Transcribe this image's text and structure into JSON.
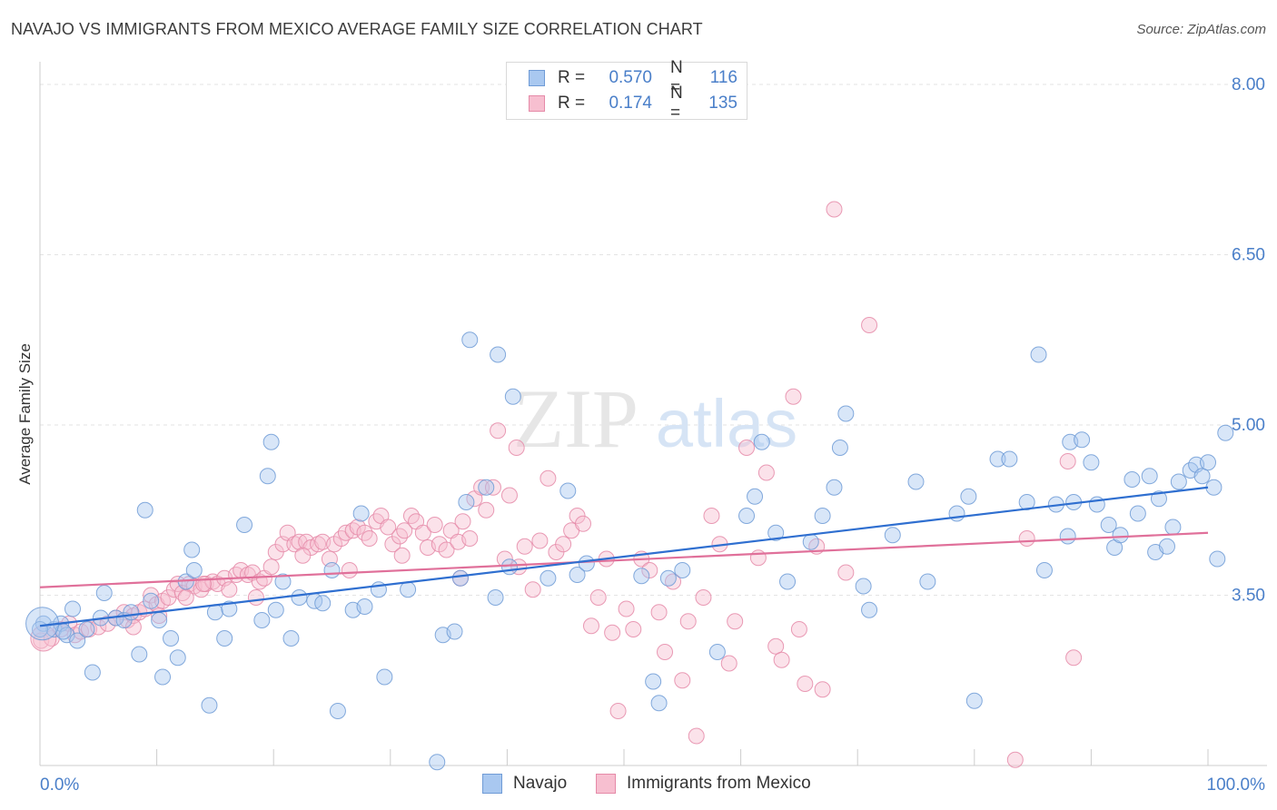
{
  "header": {
    "title": "NAVAJO VS IMMIGRANTS FROM MEXICO AVERAGE FAMILY SIZE CORRELATION CHART",
    "source": "Source: ZipAtlas.com"
  },
  "watermark": {
    "zip": "ZIP",
    "atlas": "atlas"
  },
  "legend": {
    "rows": [
      {
        "r_label": "R =",
        "r_value": "0.570",
        "n_label": "N =",
        "n_value": "116",
        "color": "#a9c8f0",
        "border": "#6f9bd6"
      },
      {
        "r_label": "R =",
        "r_value": "0.174",
        "n_label": "N =",
        "n_value": "135",
        "color": "#f7bfd0",
        "border": "#e58aa8"
      }
    ]
  },
  "bottom_legend": [
    {
      "label": "Navajo",
      "color": "#a9c8f0",
      "border": "#6f9bd6"
    },
    {
      "label": "Immigrants from Mexico",
      "color": "#f7bfd0",
      "border": "#e58aa8"
    }
  ],
  "chart_data": {
    "type": "scatter",
    "title": "NAVAJO VS IMMIGRANTS FROM MEXICO AVERAGE FAMILY SIZE CORRELATION CHART",
    "xlabel": "",
    "ylabel": "Average Family Size",
    "xlim": [
      0,
      100
    ],
    "ylim": [
      2.0,
      8.2
    ],
    "x_tick_labels": [
      "0.0%",
      "100.0%"
    ],
    "y_ticks": [
      3.5,
      5.0,
      6.5,
      8.0
    ],
    "y_tick_labels": [
      "3.50",
      "5.00",
      "6.50",
      "8.00"
    ],
    "grid": "horizontal-dashed",
    "legend_placement": "top-center",
    "colors": {
      "navajo": "#4a7fc9",
      "navajo_line": "#2f6fd0",
      "mexico": "#e0789c",
      "mexico_line": "#e0709a",
      "tick_label": "#4a7fc9"
    },
    "series": [
      {
        "name": "Navajo",
        "trend": {
          "x": [
            0,
            100
          ],
          "y": [
            3.23,
            4.45
          ]
        },
        "points": [
          [
            0.3,
            3.25
          ],
          [
            1.2,
            3.2
          ],
          [
            1.8,
            3.25
          ],
          [
            2.3,
            3.15
          ],
          [
            2.8,
            3.38
          ],
          [
            3.2,
            3.1
          ],
          [
            4.0,
            3.2
          ],
          [
            4.5,
            2.82
          ],
          [
            5.2,
            3.3
          ],
          [
            5.5,
            3.52
          ],
          [
            6.5,
            3.3
          ],
          [
            7.2,
            3.28
          ],
          [
            7.8,
            3.35
          ],
          [
            8.5,
            2.98
          ],
          [
            9.0,
            4.25
          ],
          [
            9.5,
            3.45
          ],
          [
            10.2,
            3.28
          ],
          [
            10.5,
            2.78
          ],
          [
            11.2,
            3.12
          ],
          [
            11.8,
            2.95
          ],
          [
            12.5,
            3.62
          ],
          [
            13.0,
            3.9
          ],
          [
            13.2,
            3.72
          ],
          [
            14.5,
            2.53
          ],
          [
            15.0,
            3.35
          ],
          [
            15.8,
            3.12
          ],
          [
            16.2,
            3.38
          ],
          [
            17.5,
            4.12
          ],
          [
            19.0,
            3.28
          ],
          [
            19.5,
            4.55
          ],
          [
            19.8,
            4.85
          ],
          [
            20.2,
            3.37
          ],
          [
            20.8,
            3.62
          ],
          [
            21.5,
            3.12
          ],
          [
            22.2,
            3.48
          ],
          [
            23.5,
            3.45
          ],
          [
            24.2,
            3.43
          ],
          [
            25.0,
            3.72
          ],
          [
            25.5,
            2.48
          ],
          [
            26.8,
            3.37
          ],
          [
            27.5,
            4.22
          ],
          [
            27.8,
            3.4
          ],
          [
            29.0,
            3.55
          ],
          [
            29.5,
            2.78
          ],
          [
            31.5,
            3.55
          ],
          [
            34.0,
            2.03
          ],
          [
            34.5,
            3.15
          ],
          [
            35.5,
            3.18
          ],
          [
            36.0,
            3.65
          ],
          [
            36.5,
            4.32
          ],
          [
            36.8,
            5.75
          ],
          [
            38.2,
            4.45
          ],
          [
            39.0,
            3.48
          ],
          [
            39.2,
            5.62
          ],
          [
            40.2,
            3.75
          ],
          [
            40.5,
            5.25
          ],
          [
            43.5,
            3.65
          ],
          [
            45.2,
            4.42
          ],
          [
            46.0,
            3.68
          ],
          [
            46.8,
            3.78
          ],
          [
            51.5,
            3.67
          ],
          [
            52.5,
            2.74
          ],
          [
            53.0,
            2.55
          ],
          [
            53.8,
            3.65
          ],
          [
            55.0,
            3.72
          ],
          [
            58.0,
            3.0
          ],
          [
            60.5,
            4.2
          ],
          [
            61.2,
            4.37
          ],
          [
            61.8,
            4.85
          ],
          [
            63.0,
            4.05
          ],
          [
            64.0,
            3.62
          ],
          [
            66.0,
            3.97
          ],
          [
            67.0,
            4.2
          ],
          [
            68.0,
            4.45
          ],
          [
            68.5,
            4.8
          ],
          [
            69.0,
            5.1
          ],
          [
            70.5,
            3.58
          ],
          [
            71.0,
            3.37
          ],
          [
            73.0,
            4.03
          ],
          [
            75.0,
            4.5
          ],
          [
            76.0,
            3.62
          ],
          [
            78.5,
            4.22
          ],
          [
            79.5,
            4.37
          ],
          [
            80.0,
            2.57
          ],
          [
            82.0,
            4.7
          ],
          [
            83.0,
            4.7
          ],
          [
            84.5,
            4.32
          ],
          [
            85.5,
            5.62
          ],
          [
            86.0,
            3.72
          ],
          [
            87.0,
            4.3
          ],
          [
            88.0,
            4.02
          ],
          [
            88.2,
            4.85
          ],
          [
            88.5,
            4.32
          ],
          [
            89.2,
            4.87
          ],
          [
            90.0,
            4.67
          ],
          [
            90.5,
            4.3
          ],
          [
            91.5,
            4.12
          ],
          [
            92.0,
            3.92
          ],
          [
            92.5,
            4.03
          ],
          [
            93.5,
            4.52
          ],
          [
            94.0,
            4.22
          ],
          [
            95.0,
            4.55
          ],
          [
            95.5,
            3.88
          ],
          [
            95.8,
            4.35
          ],
          [
            96.5,
            3.93
          ],
          [
            97.0,
            4.1
          ],
          [
            97.5,
            4.5
          ],
          [
            98.5,
            4.6
          ],
          [
            99.0,
            4.65
          ],
          [
            99.5,
            4.55
          ],
          [
            100.0,
            4.67
          ],
          [
            100.5,
            4.45
          ],
          [
            100.8,
            3.82
          ],
          [
            101.5,
            4.93
          ],
          [
            0.0,
            3.2
          ],
          [
            2.0,
            3.18
          ]
        ]
      },
      {
        "name": "Immigrants from Mexico",
        "trend": {
          "x": [
            0,
            100
          ],
          "y": [
            3.57,
            4.05
          ]
        },
        "points": [
          [
            0.1,
            3.1
          ],
          [
            1.0,
            3.12
          ],
          [
            1.8,
            3.2
          ],
          [
            2.5,
            3.25
          ],
          [
            3.0,
            3.15
          ],
          [
            3.5,
            3.18
          ],
          [
            4.2,
            3.2
          ],
          [
            5.0,
            3.22
          ],
          [
            5.8,
            3.25
          ],
          [
            6.5,
            3.3
          ],
          [
            7.2,
            3.35
          ],
          [
            7.5,
            3.28
          ],
          [
            8.0,
            3.32
          ],
          [
            8.5,
            3.35
          ],
          [
            9.0,
            3.38
          ],
          [
            9.5,
            3.5
          ],
          [
            10.0,
            3.42
          ],
          [
            10.5,
            3.45
          ],
          [
            11.0,
            3.48
          ],
          [
            11.5,
            3.55
          ],
          [
            11.8,
            3.6
          ],
          [
            12.2,
            3.52
          ],
          [
            12.8,
            3.6
          ],
          [
            13.2,
            3.58
          ],
          [
            13.8,
            3.55
          ],
          [
            14.2,
            3.6
          ],
          [
            14.8,
            3.62
          ],
          [
            15.2,
            3.6
          ],
          [
            15.8,
            3.65
          ],
          [
            16.2,
            3.55
          ],
          [
            16.8,
            3.68
          ],
          [
            17.2,
            3.72
          ],
          [
            17.8,
            3.68
          ],
          [
            18.2,
            3.7
          ],
          [
            18.8,
            3.62
          ],
          [
            19.2,
            3.65
          ],
          [
            19.8,
            3.75
          ],
          [
            20.2,
            3.88
          ],
          [
            20.8,
            3.95
          ],
          [
            21.2,
            4.05
          ],
          [
            21.8,
            3.95
          ],
          [
            22.2,
            3.97
          ],
          [
            22.8,
            3.97
          ],
          [
            23.2,
            3.92
          ],
          [
            23.8,
            3.95
          ],
          [
            24.2,
            3.97
          ],
          [
            24.8,
            3.82
          ],
          [
            25.2,
            3.95
          ],
          [
            25.8,
            4.0
          ],
          [
            26.2,
            4.05
          ],
          [
            26.8,
            4.07
          ],
          [
            27.2,
            4.1
          ],
          [
            27.8,
            4.05
          ],
          [
            28.2,
            4.0
          ],
          [
            28.8,
            4.15
          ],
          [
            29.2,
            4.2
          ],
          [
            29.8,
            4.1
          ],
          [
            30.2,
            3.95
          ],
          [
            30.8,
            4.02
          ],
          [
            31.2,
            4.07
          ],
          [
            31.8,
            4.2
          ],
          [
            32.2,
            4.15
          ],
          [
            32.8,
            4.05
          ],
          [
            33.2,
            3.92
          ],
          [
            33.8,
            4.12
          ],
          [
            34.2,
            3.95
          ],
          [
            34.8,
            3.9
          ],
          [
            35.2,
            4.07
          ],
          [
            35.8,
            3.97
          ],
          [
            36.2,
            4.15
          ],
          [
            36.8,
            4.0
          ],
          [
            37.2,
            4.35
          ],
          [
            37.8,
            4.45
          ],
          [
            38.2,
            4.25
          ],
          [
            38.8,
            4.45
          ],
          [
            39.2,
            4.95
          ],
          [
            39.8,
            3.82
          ],
          [
            40.2,
            4.38
          ],
          [
            40.8,
            4.8
          ],
          [
            41.5,
            3.93
          ],
          [
            42.2,
            3.55
          ],
          [
            42.8,
            3.98
          ],
          [
            43.5,
            4.53
          ],
          [
            44.2,
            3.88
          ],
          [
            44.8,
            3.95
          ],
          [
            45.5,
            4.07
          ],
          [
            46.0,
            4.2
          ],
          [
            46.5,
            4.13
          ],
          [
            47.2,
            3.23
          ],
          [
            47.8,
            3.48
          ],
          [
            48.5,
            3.82
          ],
          [
            49.0,
            3.17
          ],
          [
            49.5,
            2.48
          ],
          [
            50.2,
            3.38
          ],
          [
            50.8,
            3.2
          ],
          [
            51.5,
            3.82
          ],
          [
            52.2,
            3.72
          ],
          [
            53.0,
            3.35
          ],
          [
            53.5,
            3.0
          ],
          [
            54.2,
            3.62
          ],
          [
            55.0,
            2.75
          ],
          [
            55.5,
            3.27
          ],
          [
            56.2,
            2.26
          ],
          [
            56.8,
            3.48
          ],
          [
            57.5,
            4.2
          ],
          [
            58.2,
            3.95
          ],
          [
            59.0,
            2.9
          ],
          [
            59.5,
            3.27
          ],
          [
            60.5,
            4.8
          ],
          [
            61.5,
            3.83
          ],
          [
            62.2,
            4.58
          ],
          [
            63.0,
            3.05
          ],
          [
            63.5,
            2.93
          ],
          [
            64.5,
            5.25
          ],
          [
            65.0,
            3.2
          ],
          [
            65.5,
            2.72
          ],
          [
            66.5,
            3.93
          ],
          [
            67.0,
            2.67
          ],
          [
            68.0,
            6.9
          ],
          [
            69.0,
            3.7
          ],
          [
            71.0,
            5.88
          ],
          [
            83.5,
            2.05
          ],
          [
            84.5,
            4.0
          ],
          [
            88.0,
            4.68
          ],
          [
            88.5,
            2.95
          ],
          [
            8.0,
            3.22
          ],
          [
            10.2,
            3.32
          ],
          [
            12.5,
            3.48
          ],
          [
            14.0,
            3.6
          ],
          [
            18.5,
            3.48
          ],
          [
            22.5,
            3.85
          ],
          [
            26.5,
            3.72
          ],
          [
            31.0,
            3.85
          ],
          [
            36.0,
            3.65
          ],
          [
            41.0,
            3.75
          ]
        ]
      }
    ]
  }
}
